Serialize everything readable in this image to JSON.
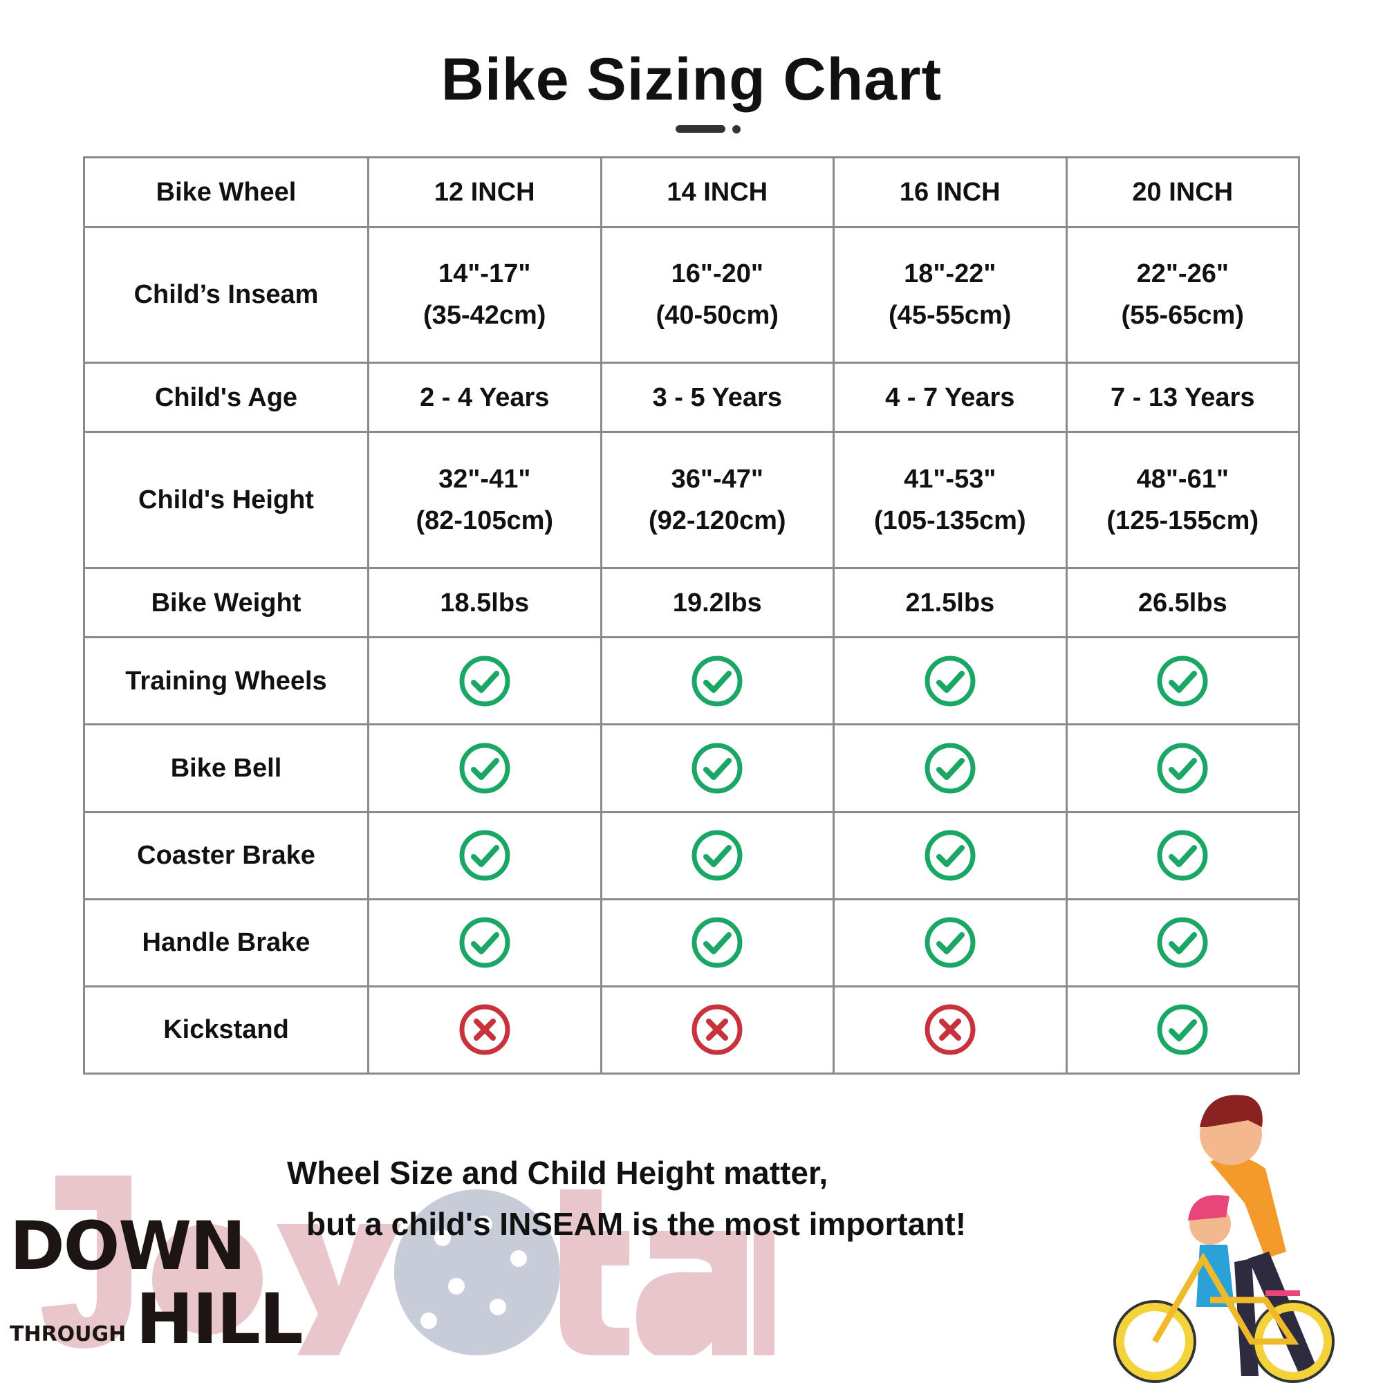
{
  "title": "Bike Sizing Chart",
  "colors": {
    "check": "#1aa765",
    "cross": "#c7323c",
    "border": "#8a8a8a"
  },
  "table": {
    "rows": [
      {
        "label": "Bike Wheel",
        "cells": [
          "12 INCH",
          "14 INCH",
          "16 INCH",
          "20 INCH"
        ]
      },
      {
        "label": "Child’s Inseam",
        "cells": [
          "14\"-17\"\n(35-42cm)",
          "16\"-20\"\n(40-50cm)",
          "18\"-22\"\n(45-55cm)",
          "22\"-26\"\n(55-65cm)"
        ]
      },
      {
        "label": "Child's Age",
        "cells": [
          "2 - 4 Years",
          "3 - 5 Years",
          "4 - 7 Years",
          "7 - 13 Years"
        ]
      },
      {
        "label": "Child's Height",
        "cells": [
          "32\"-41\"\n(82-105cm)",
          "36\"-47\"\n(92-120cm)",
          "41\"-53\"\n(105-135cm)",
          "48\"-61\"\n(125-155cm)"
        ]
      },
      {
        "label": "Bike Weight",
        "cells": [
          "18.5lbs",
          "19.2lbs",
          "21.5lbs",
          "26.5lbs"
        ]
      },
      {
        "label": "Training Wheels",
        "icons": [
          "check",
          "check",
          "check",
          "check"
        ]
      },
      {
        "label": "Bike Bell",
        "icons": [
          "check",
          "check",
          "check",
          "check"
        ]
      },
      {
        "label": "Coaster Brake",
        "icons": [
          "check",
          "check",
          "check",
          "check"
        ]
      },
      {
        "label": "Handle Brake",
        "icons": [
          "check",
          "check",
          "check",
          "check"
        ]
      },
      {
        "label": "Kickstand",
        "icons": [
          "cross",
          "cross",
          "cross",
          "check"
        ]
      }
    ]
  },
  "note": {
    "line1": "Wheel Size and Child Height matter,",
    "line2": "but a child's INSEAM is the most important!"
  },
  "logos": {
    "watermark": "JoyStar",
    "brand": {
      "top": "DOWN",
      "middle": "THROUGH",
      "bottom": "HILL"
    }
  }
}
